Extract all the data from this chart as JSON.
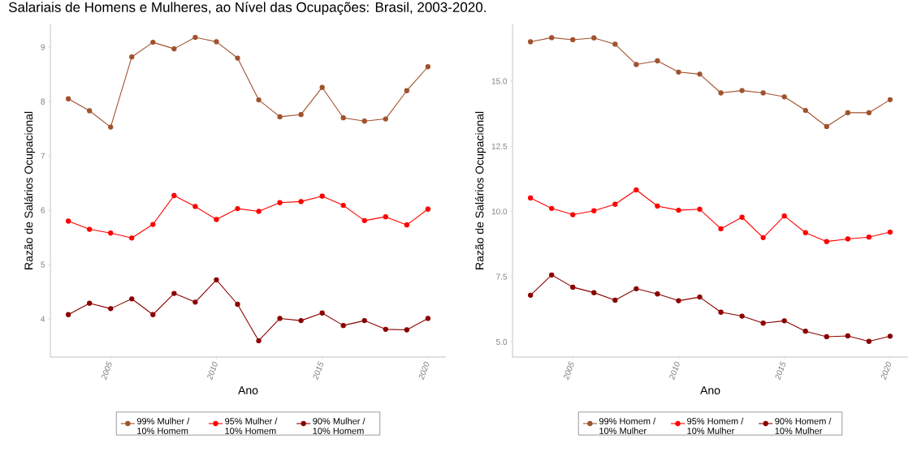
{
  "chart_data": [
    {
      "type": "line",
      "title": "Salariais de Homens e Mulheres, ao Nível das Ocupações: Brasil, 2003-2020.",
      "xlabel": "Ano",
      "ylabel": "Razão de Salários Ocupacional",
      "x": [
        2003,
        2004,
        2005,
        2006,
        2007,
        2008,
        2009,
        2010,
        2011,
        2012,
        2013,
        2014,
        2015,
        2016,
        2017,
        2018,
        2019,
        2020
      ],
      "series": [
        {
          "name": "99% Mulher / 10% Homem",
          "color": "#a0522d",
          "values": [
            8.05,
            7.83,
            7.53,
            8.82,
            9.09,
            8.97,
            9.18,
            9.1,
            8.8,
            8.03,
            7.72,
            7.76,
            8.26,
            7.7,
            7.64,
            7.68,
            8.2,
            8.64
          ]
        },
        {
          "name": "95% Mulher / 10% Homem",
          "color": "#ff0000",
          "values": [
            5.8,
            5.65,
            5.58,
            5.49,
            5.74,
            6.27,
            6.07,
            5.83,
            6.03,
            5.98,
            6.14,
            6.16,
            6.26,
            6.09,
            5.81,
            5.88,
            5.73,
            6.02
          ]
        },
        {
          "name": "90% Mulher / 10% Homem",
          "color": "#8b0000",
          "values": [
            4.08,
            4.29,
            4.19,
            4.37,
            4.08,
            4.47,
            4.31,
            4.72,
            4.27,
            3.6,
            4.01,
            3.97,
            4.11,
            3.88,
            3.97,
            3.81,
            3.8,
            4.01
          ]
        }
      ],
      "xlim": [
        2002.15,
        2020.85
      ],
      "ylim": [
        3.3,
        9.42
      ],
      "xticks": [
        2005,
        2010,
        2015,
        2020
      ],
      "yticks": [
        4,
        5,
        6,
        7,
        8,
        9
      ],
      "legend": "bottom",
      "marker": "circle",
      "line_style": "solid"
    },
    {
      "type": "line",
      "xlabel": "Ano",
      "ylabel": "Razão de Salários Ocupacional",
      "x": [
        2003,
        2004,
        2005,
        2006,
        2007,
        2008,
        2009,
        2010,
        2011,
        2012,
        2013,
        2014,
        2015,
        2016,
        2017,
        2018,
        2019,
        2020
      ],
      "series": [
        {
          "name": "99% Homem / 10% Mulher",
          "color": "#a0522d",
          "values": [
            16.51,
            16.67,
            16.59,
            16.66,
            16.42,
            15.64,
            15.78,
            15.35,
            15.27,
            14.55,
            14.64,
            14.55,
            14.4,
            13.88,
            13.26,
            13.79,
            13.79,
            14.29
          ]
        },
        {
          "name": "95% Homem / 10% Mulher",
          "color": "#ff0000",
          "values": [
            10.52,
            10.12,
            9.88,
            10.03,
            10.28,
            10.83,
            10.21,
            10.05,
            10.09,
            9.34,
            9.78,
            9.0,
            9.83,
            9.19,
            8.85,
            8.95,
            9.02,
            9.21
          ]
        },
        {
          "name": "90% Homem / 10% Mulher",
          "color": "#8b0000",
          "values": [
            6.79,
            7.57,
            7.1,
            6.89,
            6.6,
            7.04,
            6.84,
            6.58,
            6.72,
            6.14,
            5.99,
            5.72,
            5.81,
            5.41,
            5.2,
            5.23,
            5.02,
            5.22
          ]
        }
      ],
      "xlim": [
        2002.15,
        2020.85
      ],
      "ylim": [
        4.42,
        17.18
      ],
      "xticks": [
        2005,
        2010,
        2015,
        2020
      ],
      "yticks": [
        {
          "value": 5,
          "label": "5.0"
        },
        {
          "value": 7.5,
          "label": "7.5"
        },
        {
          "value": 10,
          "label": "10.0"
        },
        {
          "value": 12.5,
          "label": "12.5"
        },
        {
          "value": 15,
          "label": "15.0"
        }
      ],
      "legend": "bottom",
      "marker": "circle",
      "line_style": "solid"
    }
  ]
}
